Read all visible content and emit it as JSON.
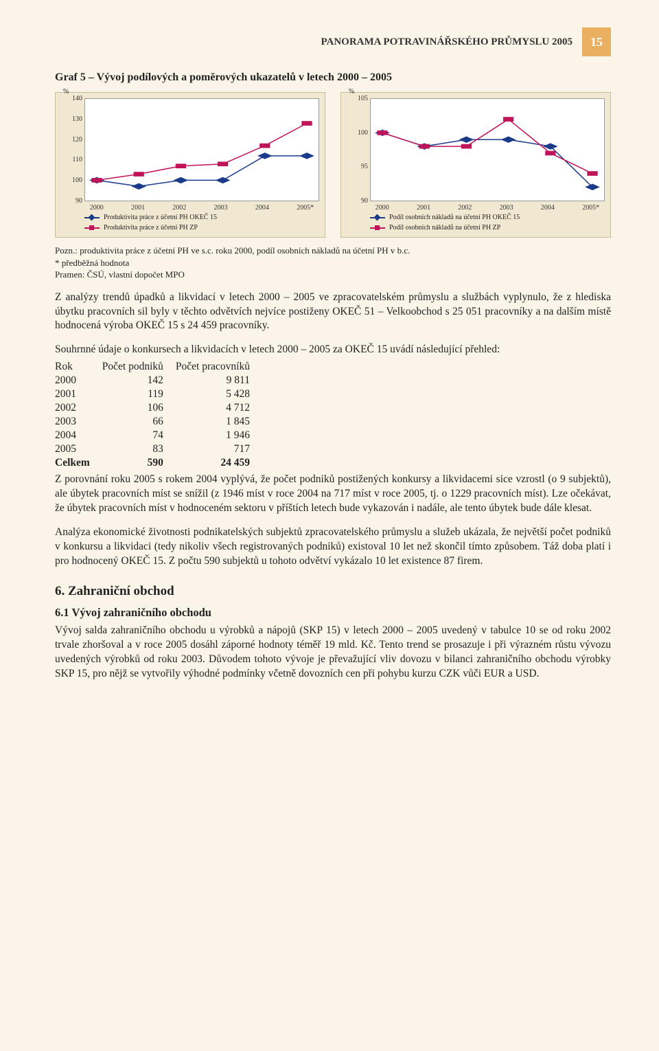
{
  "header": {
    "title": "PANORAMA POTRAVINÁŘSKÉHO PRŮMYSLU 2005",
    "page_number": "15"
  },
  "graph_heading": "Graf 5 – Vývoj podílových a poměrových ukazatelů v letech 2000 – 2005",
  "chart_left": {
    "type": "line",
    "categories": [
      "2000",
      "2001",
      "2002",
      "2003",
      "2004",
      "2005*"
    ],
    "ylim": [
      90,
      140
    ],
    "yticks": [
      90,
      100,
      110,
      120,
      130,
      140
    ],
    "ylabel": "%",
    "background_color": "#ffffff",
    "series": [
      {
        "label": "Produktivita práce z účetní PH OKEČ 15",
        "color": "#1a3a8a",
        "marker": "diamond",
        "values": [
          100,
          97,
          100,
          100,
          112,
          112
        ]
      },
      {
        "label": "Produktivita práce z účetní PH ZP",
        "color": "#c0145a",
        "marker": "square",
        "values": [
          100,
          103,
          107,
          108,
          117,
          128
        ]
      }
    ]
  },
  "chart_right": {
    "type": "line",
    "categories": [
      "2000",
      "2001",
      "2002",
      "2003",
      "2004",
      "2005*"
    ],
    "ylim": [
      90,
      105
    ],
    "yticks": [
      90,
      95,
      100,
      105
    ],
    "ylabel": "%",
    "background_color": "#ffffff",
    "series": [
      {
        "label": "Podíl osobních nákladů na účetní PH OKEČ 15",
        "color": "#1a3a8a",
        "marker": "diamond",
        "values": [
          100,
          98,
          99,
          99,
          98,
          92
        ]
      },
      {
        "label": "Podíl osobních nákladů na účetní PH ZP",
        "color": "#c0145a",
        "marker": "square",
        "values": [
          100,
          98,
          98,
          102,
          97,
          94
        ]
      }
    ]
  },
  "footnote": {
    "line1": "Pozn.: produktivita práce z účetní PH ve s.c. roku 2000, podíl osobních nákladů na účetní PH v b.c.",
    "line2": "* předběžná hodnota",
    "line3": "Pramen: ČSÚ, vlastní dopočet MPO"
  },
  "para1": "Z analýzy trendů úpadků a likvidací v letech 2000 – 2005 ve zpracovatelském průmyslu a službách vyplynulo, že z hlediska úbytku pracovních sil byly v těchto odvětvích nejvíce postiženy OKEČ 51 – Velkoobchod s 25 051 pracovníky a na dalším místě hodnocená výroba OKEČ 15 s 24 459 pracovníky.",
  "table_intro": "Souhrnné údaje o konkursech a likvidacích v letech 2000 – 2005 za OKEČ 15 uvádí následující přehled:",
  "table": {
    "columns": [
      "Rok",
      "Počet podniků",
      "Počet pracovníků"
    ],
    "rows": [
      [
        "2000",
        "142",
        "9 811"
      ],
      [
        "2001",
        "119",
        "5 428"
      ],
      [
        "2002",
        "106",
        "4 712"
      ],
      [
        "2003",
        "66",
        "1 845"
      ],
      [
        "2004",
        "74",
        "1 946"
      ],
      [
        "2005",
        "83",
        "717"
      ]
    ],
    "total": [
      "Celkem",
      "590",
      "24 459"
    ]
  },
  "para2": "Z porovnání roku 2005 s rokem 2004 vyplývá, že počet podniků postižených konkursy a likvidacemi sice vzrostl (o 9 subjektů), ale úbytek pracovních míst se snížil (z 1946 míst v roce 2004 na 717 míst v roce 2005, tj. o 1229 pracovních míst). Lze očekávat, že úbytek pracovních míst v hodnoceném sektoru v příštích letech bude vykazován i nadále, ale tento úbytek bude dále klesat.",
  "para3": "Analýza ekonomické životnosti podnikatelských subjektů zpracovatelského průmyslu a služeb ukázala, že největší počet podniků v konkursu a likvidaci (tedy nikoliv všech registrovaných podniků) existoval 10 let než skončil tímto způsobem. Táž doba platí i pro hodnocený OKEČ 15. Z počtu 590 subjektů u tohoto odvětví vykázalo 10 let existence 87 firem.",
  "sec6": {
    "title": "6. Zahraniční obchod",
    "sub1_title": "6.1 Vývoj zahraničního obchodu"
  },
  "para4": "Vývoj salda zahraničního obchodu u výrobků a nápojů (SKP 15) v letech 2000 – 2005 uvedený v tabulce 10 se od roku 2002 trvale zhoršoval a v roce 2005 dosáhl záporné hodnoty téměř 19 mld. Kč.  Tento trend se prosazuje i při výrazném růstu vývozu uvedených výrobků od roku 2003. Důvodem tohoto vývoje je převažující vliv dovozu v bilanci zahraničního obchodu výrobky SKP 15, pro nějž se vytvořily výhodné podmínky včetně dovozních cen při pohybu kurzu CZK vůči EUR a USD."
}
